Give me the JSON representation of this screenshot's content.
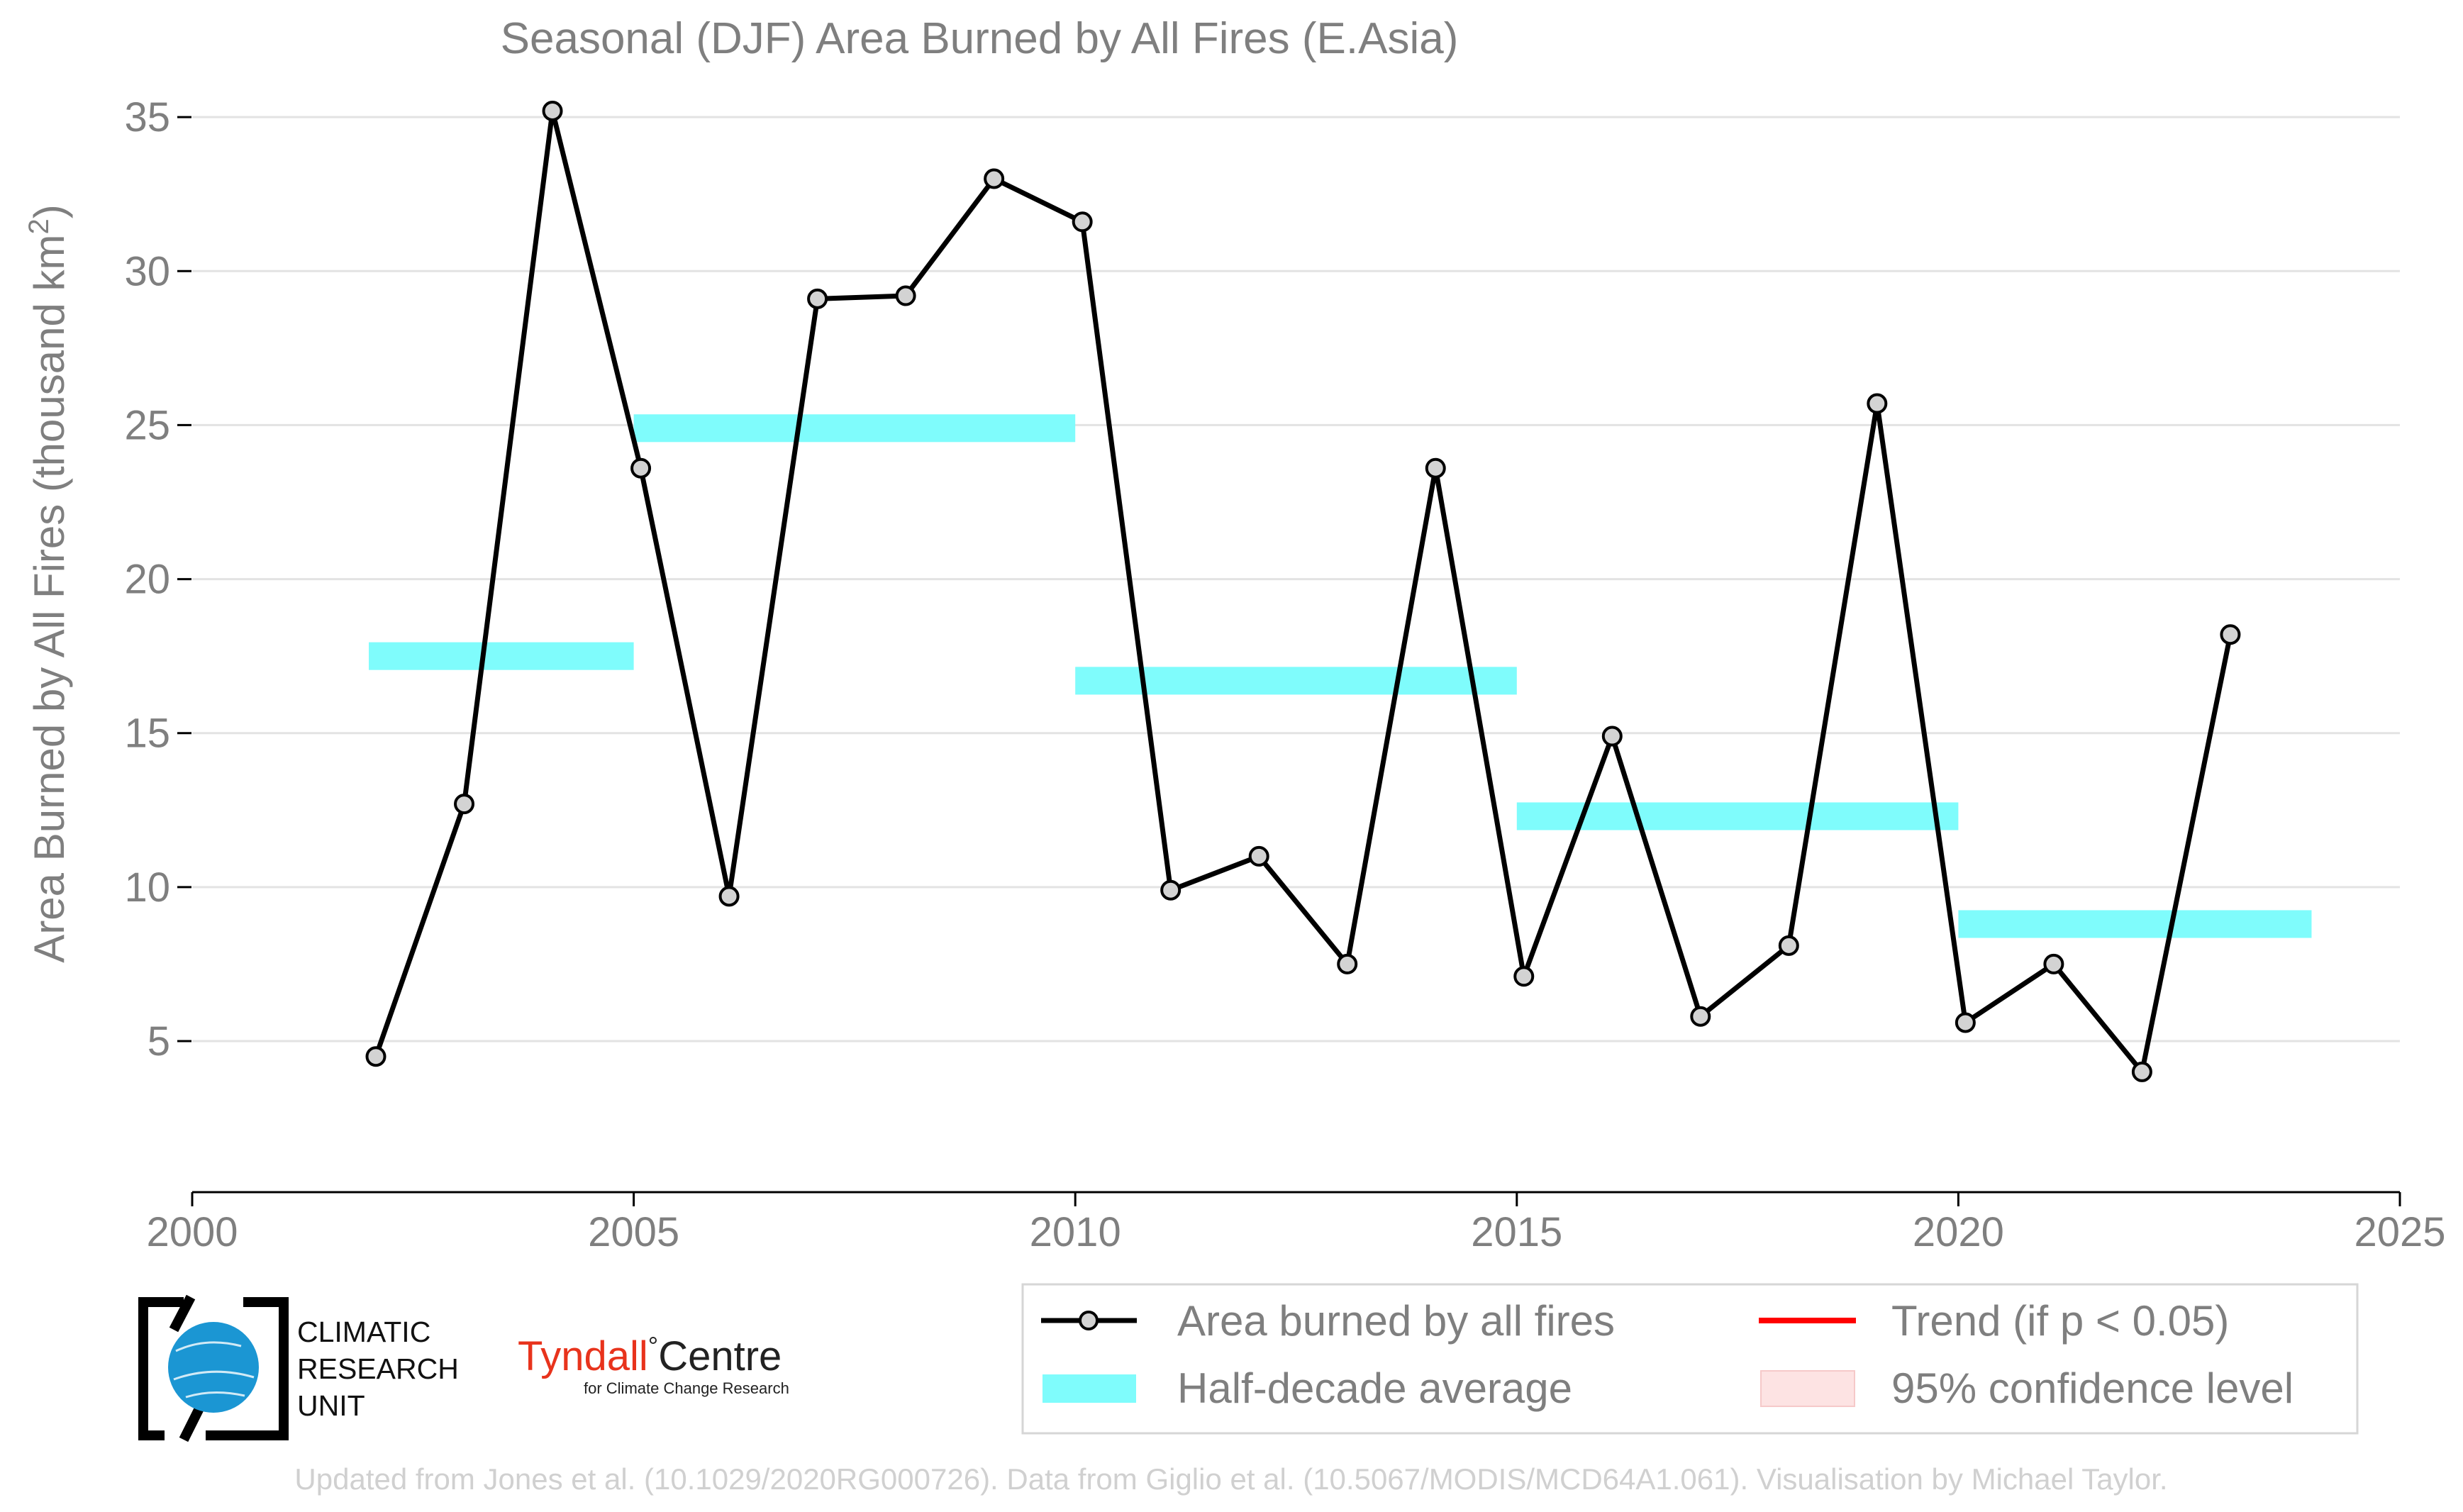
{
  "title": "Seasonal (DJF) Area Burned by All Fires (E.Asia)",
  "chart_data": {
    "type": "line",
    "title": "Seasonal (DJF) Area Burned by All Fires (E.Asia)",
    "xlabel": "",
    "ylabel_main": "Area Burned by All Fires (thousand km",
    "ylabel_sup": "2",
    "ylabel_close": ")",
    "xlim": [
      2000,
      2025
    ],
    "ylim": [
      1.5,
      36.5
    ],
    "xticks": [
      2000,
      2005,
      2010,
      2015,
      2020,
      2025
    ],
    "yticks": [
      5,
      10,
      15,
      20,
      25,
      30,
      35
    ],
    "grid": true,
    "series": [
      {
        "name": "Area burned by all fires",
        "type": "line",
        "color": "#000000",
        "marker_fill": "#d3d3d3",
        "x": [
          2002,
          2003,
          2004,
          2005,
          2006,
          2007,
          2008,
          2009,
          2010,
          2011,
          2012,
          2013,
          2014,
          2015,
          2016,
          2017,
          2018,
          2019,
          2020,
          2021,
          2022,
          2023
        ],
        "values": [
          4.5,
          12.7,
          35.2,
          23.6,
          9.7,
          29.1,
          29.2,
          33.0,
          31.6,
          9.9,
          11.0,
          7.5,
          23.6,
          7.1,
          14.9,
          5.8,
          8.1,
          25.7,
          5.6,
          7.5,
          4.0,
          18.2
        ]
      }
    ],
    "half_decade_average": {
      "name": "Half-decade average",
      "color": "#7ffcfc",
      "segments": [
        {
          "start": 2002,
          "end": 2005,
          "value": 17.5
        },
        {
          "start": 2005,
          "end": 2010,
          "value": 24.9
        },
        {
          "start": 2010,
          "end": 2015,
          "value": 16.7
        },
        {
          "start": 2015,
          "end": 2020,
          "value": 12.3
        },
        {
          "start": 2020,
          "end": 2024,
          "value": 8.8
        }
      ]
    }
  },
  "legend": {
    "items": [
      {
        "label": "Area burned by all fires",
        "kind": "line-marker",
        "color": "#000000"
      },
      {
        "label": "Trend (if p < 0.05)",
        "kind": "line",
        "color": "#ff0000"
      },
      {
        "label": "Half-decade average",
        "kind": "band",
        "color": "#7ffcfc"
      },
      {
        "label": "95% confidence level",
        "kind": "patch",
        "color": "#fde3e3"
      }
    ]
  },
  "logos": {
    "cru": {
      "line1": "CLIMATIC",
      "line2": "RESEARCH",
      "line3": "UNIT"
    },
    "tyndall": {
      "word1": "Tyndall",
      "degree": "°",
      "word2": "Centre",
      "sub": "for Climate Change Research",
      "red": "#e8331c"
    }
  },
  "footer": "Updated from Jones et al. (10.1029/2020RG000726). Data from Giglio et al. (10.5067/MODIS/MCD64A1.061). Visualisation by Michael Taylor."
}
